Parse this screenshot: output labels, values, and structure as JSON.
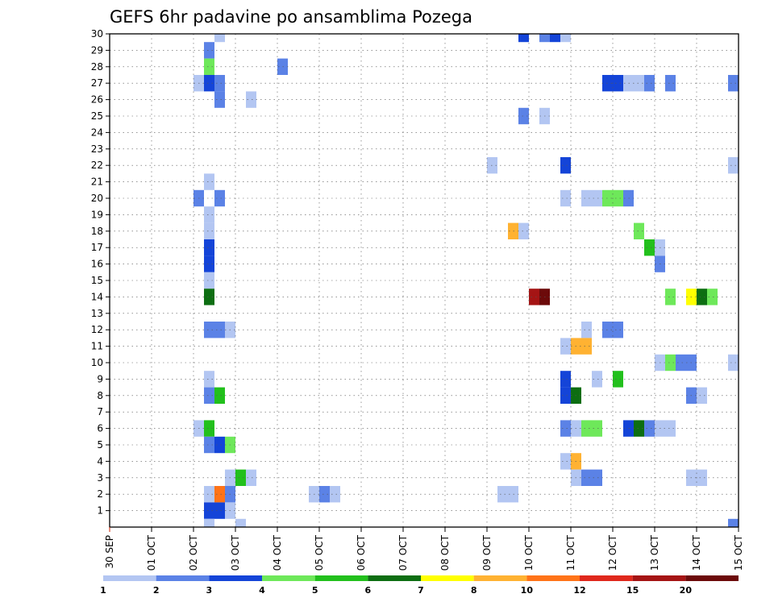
{
  "chart_data": {
    "type": "heatmap",
    "title": "GEFS 6hr padavine po ansamblima Pozega",
    "x_tick_labels": [
      "30 SEP",
      "01 OCT",
      "02 OCT",
      "03 OCT",
      "04 OCT",
      "05 OCT",
      "06 OCT",
      "07 OCT",
      "08 OCT",
      "09 OCT",
      "10 OCT",
      "11 OCT",
      "12 OCT",
      "13 OCT",
      "14 OCT",
      "15 OCT"
    ],
    "y_tick_labels": [
      "1",
      "2",
      "3",
      "4",
      "5",
      "6",
      "7",
      "8",
      "9",
      "10",
      "11",
      "12",
      "13",
      "14",
      "15",
      "16",
      "17",
      "18",
      "19",
      "20",
      "21",
      "22",
      "23",
      "24",
      "25",
      "26",
      "27",
      "28",
      "29",
      "30"
    ],
    "x_range_days": [
      0,
      15
    ],
    "y_range": [
      0,
      30
    ],
    "time_step_hours": 6,
    "grid": true,
    "colorbar": {
      "labels": [
        "1",
        "2",
        "3",
        "4",
        "5",
        "6",
        "7",
        "8",
        "10",
        "12",
        "15",
        "20"
      ],
      "colors": [
        "#b3c6f2",
        "#5b82e6",
        "#1444d8",
        "#6ee85a",
        "#22c01c",
        "#0d6e12",
        "#ffff00",
        "#ffb232",
        "#ff7318",
        "#e0281c",
        "#a51414",
        "#6c0a0a"
      ]
    },
    "cells": [
      [
        30,
        2.5,
        1
      ],
      [
        29,
        2.25,
        2
      ],
      [
        28,
        2.25,
        4
      ],
      [
        28,
        4.0,
        2
      ],
      [
        27,
        2.0,
        1
      ],
      [
        27,
        2.25,
        3
      ],
      [
        27,
        2.5,
        2
      ],
      [
        26,
        2.5,
        2
      ],
      [
        26,
        3.25,
        1
      ],
      [
        20,
        2.0,
        2
      ],
      [
        20,
        2.5,
        2
      ],
      [
        21,
        2.25,
        1
      ],
      [
        19,
        2.25,
        1
      ],
      [
        18,
        2.25,
        1
      ],
      [
        17,
        2.25,
        3
      ],
      [
        16,
        2.25,
        3
      ],
      [
        15,
        2.25,
        1
      ],
      [
        14,
        2.25,
        6
      ],
      [
        12,
        2.25,
        2
      ],
      [
        12,
        2.5,
        2
      ],
      [
        12,
        2.75,
        1
      ],
      [
        9,
        2.25,
        1
      ],
      [
        8,
        2.25,
        2
      ],
      [
        8,
        2.5,
        5
      ],
      [
        6,
        2.0,
        1
      ],
      [
        6,
        2.25,
        5
      ],
      [
        5,
        2.25,
        2
      ],
      [
        5,
        2.5,
        3
      ],
      [
        5,
        2.75,
        4
      ],
      [
        3,
        2.75,
        1
      ],
      [
        3,
        3.0,
        5
      ],
      [
        3,
        3.25,
        1
      ],
      [
        2,
        2.25,
        1
      ],
      [
        2,
        2.5,
        9
      ],
      [
        2,
        2.75,
        2
      ],
      [
        1,
        2.25,
        3
      ],
      [
        1,
        2.5,
        3
      ],
      [
        1,
        2.75,
        1
      ],
      [
        0,
        2.25,
        1
      ],
      [
        0,
        3.0,
        1
      ],
      [
        2,
        4.75,
        1
      ],
      [
        2,
        5.0,
        2
      ],
      [
        2,
        5.25,
        1
      ],
      [
        30,
        9.75,
        3
      ],
      [
        30,
        10.25,
        2
      ],
      [
        30,
        10.5,
        3
      ],
      [
        30,
        10.75,
        1
      ],
      [
        27,
        11.75,
        3
      ],
      [
        27,
        12.0,
        3
      ],
      [
        27,
        12.25,
        1
      ],
      [
        27,
        12.5,
        1
      ],
      [
        27,
        12.75,
        2
      ],
      [
        27,
        13.25,
        2
      ],
      [
        27,
        14.75,
        2
      ],
      [
        25,
        9.75,
        2
      ],
      [
        25,
        10.25,
        1
      ],
      [
        22,
        9.0,
        1
      ],
      [
        22,
        10.75,
        3
      ],
      [
        22,
        14.75,
        1
      ],
      [
        20,
        10.75,
        1
      ],
      [
        20,
        11.25,
        1
      ],
      [
        20,
        11.5,
        1
      ],
      [
        20,
        11.75,
        4
      ],
      [
        20,
        12.0,
        4
      ],
      [
        20,
        12.25,
        2
      ],
      [
        18,
        9.5,
        8
      ],
      [
        18,
        9.75,
        1
      ],
      [
        18,
        12.5,
        4
      ],
      [
        17,
        12.75,
        5
      ],
      [
        17,
        13.0,
        1
      ],
      [
        16,
        13.0,
        2
      ],
      [
        14,
        10.0,
        11
      ],
      [
        14,
        10.25,
        12
      ],
      [
        14,
        13.25,
        4
      ],
      [
        14,
        13.75,
        7
      ],
      [
        14,
        14.0,
        6
      ],
      [
        14,
        14.25,
        4
      ],
      [
        12,
        11.25,
        1
      ],
      [
        12,
        11.75,
        2
      ],
      [
        12,
        12.0,
        2
      ],
      [
        11,
        10.75,
        1
      ],
      [
        11,
        11.0,
        8
      ],
      [
        11,
        11.25,
        8
      ],
      [
        10,
        13.0,
        1
      ],
      [
        10,
        13.25,
        4
      ],
      [
        10,
        13.5,
        2
      ],
      [
        10,
        13.75,
        2
      ],
      [
        10,
        14.75,
        1
      ],
      [
        9,
        10.75,
        3
      ],
      [
        9,
        11.5,
        1
      ],
      [
        9,
        12.0,
        5
      ],
      [
        8,
        10.75,
        3
      ],
      [
        8,
        11.0,
        6
      ],
      [
        8,
        13.75,
        2
      ],
      [
        8,
        14.0,
        1
      ],
      [
        6,
        10.75,
        2
      ],
      [
        6,
        11.0,
        1
      ],
      [
        6,
        11.25,
        4
      ],
      [
        6,
        11.5,
        4
      ],
      [
        6,
        12.25,
        3
      ],
      [
        6,
        12.5,
        6
      ],
      [
        6,
        12.75,
        2
      ],
      [
        6,
        13.0,
        1
      ],
      [
        6,
        13.25,
        1
      ],
      [
        4,
        10.75,
        1
      ],
      [
        4,
        11.0,
        8
      ],
      [
        3,
        11.0,
        1
      ],
      [
        3,
        11.25,
        2
      ],
      [
        3,
        11.5,
        2
      ],
      [
        3,
        13.75,
        1
      ],
      [
        3,
        14.0,
        1
      ],
      [
        2,
        9.25,
        1
      ],
      [
        2,
        9.5,
        1
      ],
      [
        0,
        14.75,
        2
      ]
    ]
  }
}
